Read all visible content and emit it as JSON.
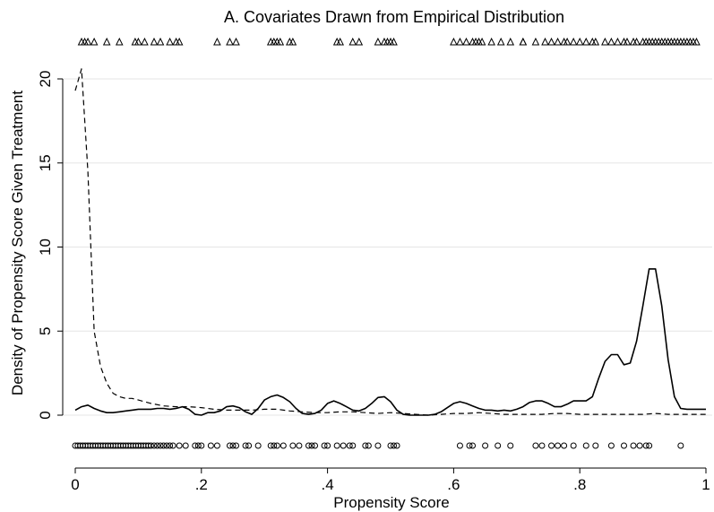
{
  "chart_data": {
    "type": "line",
    "title": "A. Covariates Drawn from Empirical Distribution",
    "xlabel": "Propensity Score",
    "ylabel": "Density of Propensity Score Given Treatment",
    "xlim": [
      0,
      1
    ],
    "ylim": [
      -2.2,
      22
    ],
    "xticks": [
      0,
      0.2,
      0.4,
      0.6,
      0.8,
      1
    ],
    "xtick_labels": [
      "0",
      ".2",
      ".4",
      ".6",
      ".8",
      "1"
    ],
    "yticks": [
      0,
      5,
      10,
      15,
      20
    ],
    "ytick_labels": [
      "0",
      "5",
      "10",
      "15",
      "20"
    ],
    "grid": true,
    "series": [
      {
        "style": "solid",
        "x": [
          0.0,
          0.01,
          0.02,
          0.03,
          0.04,
          0.05,
          0.06,
          0.07,
          0.08,
          0.09,
          0.1,
          0.11,
          0.12,
          0.13,
          0.14,
          0.15,
          0.16,
          0.17,
          0.18,
          0.19,
          0.2,
          0.21,
          0.22,
          0.23,
          0.24,
          0.25,
          0.26,
          0.27,
          0.28,
          0.29,
          0.3,
          0.31,
          0.32,
          0.33,
          0.34,
          0.35,
          0.36,
          0.37,
          0.38,
          0.39,
          0.4,
          0.41,
          0.42,
          0.43,
          0.44,
          0.45,
          0.46,
          0.47,
          0.48,
          0.49,
          0.5,
          0.51,
          0.52,
          0.53,
          0.54,
          0.55,
          0.56,
          0.57,
          0.58,
          0.59,
          0.6,
          0.61,
          0.62,
          0.63,
          0.64,
          0.65,
          0.66,
          0.67,
          0.68,
          0.69,
          0.7,
          0.71,
          0.72,
          0.73,
          0.74,
          0.75,
          0.76,
          0.77,
          0.78,
          0.79,
          0.8,
          0.81,
          0.82,
          0.83,
          0.84,
          0.85,
          0.86,
          0.87,
          0.88,
          0.89,
          0.9,
          0.91,
          0.92,
          0.93,
          0.94,
          0.95,
          0.96,
          0.97,
          0.98,
          0.99,
          1.0
        ],
        "y": [
          0.3,
          0.5,
          0.6,
          0.4,
          0.25,
          0.15,
          0.15,
          0.2,
          0.25,
          0.3,
          0.35,
          0.35,
          0.35,
          0.4,
          0.4,
          0.35,
          0.4,
          0.5,
          0.35,
          0.05,
          0.0,
          0.15,
          0.15,
          0.25,
          0.5,
          0.55,
          0.45,
          0.2,
          0.05,
          0.4,
          0.9,
          1.1,
          1.2,
          1.05,
          0.8,
          0.4,
          0.1,
          0.05,
          0.1,
          0.3,
          0.7,
          0.85,
          0.7,
          0.5,
          0.3,
          0.25,
          0.4,
          0.7,
          1.05,
          1.1,
          0.8,
          0.3,
          0.05,
          0.0,
          0.0,
          0.0,
          0.0,
          0.05,
          0.2,
          0.45,
          0.7,
          0.8,
          0.7,
          0.55,
          0.4,
          0.3,
          0.3,
          0.25,
          0.3,
          0.25,
          0.35,
          0.5,
          0.75,
          0.85,
          0.85,
          0.7,
          0.5,
          0.5,
          0.65,
          0.85,
          0.85,
          0.85,
          1.1,
          2.2,
          3.2,
          3.6,
          3.6,
          3.0,
          3.1,
          4.4,
          6.5,
          8.7,
          8.7,
          6.5,
          3.3,
          1.1,
          0.4,
          0.35,
          0.35,
          0.35,
          0.35
        ]
      },
      {
        "style": "dashed",
        "x": [
          0.0,
          0.01,
          0.02,
          0.03,
          0.04,
          0.05,
          0.06,
          0.07,
          0.08,
          0.09,
          0.1,
          0.12,
          0.14,
          0.16,
          0.18,
          0.2,
          0.22,
          0.24,
          0.26,
          0.28,
          0.3,
          0.32,
          0.34,
          0.36,
          0.38,
          0.4,
          0.42,
          0.44,
          0.46,
          0.48,
          0.5,
          0.52,
          0.54,
          0.56,
          0.58,
          0.6,
          0.62,
          0.64,
          0.66,
          0.68,
          0.7,
          0.72,
          0.74,
          0.76,
          0.78,
          0.8,
          0.82,
          0.84,
          0.86,
          0.88,
          0.9,
          0.92,
          0.94,
          0.96,
          0.98,
          1.0
        ],
        "y": [
          19.3,
          20.6,
          14.5,
          5.0,
          2.9,
          1.9,
          1.3,
          1.1,
          1.0,
          1.0,
          0.9,
          0.7,
          0.55,
          0.5,
          0.5,
          0.45,
          0.35,
          0.3,
          0.3,
          0.3,
          0.35,
          0.35,
          0.25,
          0.2,
          0.15,
          0.15,
          0.2,
          0.2,
          0.15,
          0.1,
          0.15,
          0.1,
          0.05,
          0.0,
          0.05,
          0.1,
          0.1,
          0.15,
          0.1,
          0.05,
          0.05,
          0.05,
          0.05,
          0.1,
          0.1,
          0.05,
          0.05,
          0.05,
          0.05,
          0.05,
          0.05,
          0.1,
          0.05,
          0.05,
          0.05,
          0.05
        ]
      }
    ],
    "rug_treated": [
      0.01,
      0.015,
      0.02,
      0.03,
      0.05,
      0.07,
      0.095,
      0.1,
      0.11,
      0.125,
      0.135,
      0.15,
      0.16,
      0.165,
      0.225,
      0.245,
      0.255,
      0.31,
      0.315,
      0.32,
      0.325,
      0.34,
      0.345,
      0.415,
      0.42,
      0.44,
      0.45,
      0.48,
      0.49,
      0.495,
      0.5,
      0.505,
      0.6,
      0.61,
      0.62,
      0.63,
      0.635,
      0.64,
      0.645,
      0.66,
      0.675,
      0.69,
      0.71,
      0.71,
      0.73,
      0.745,
      0.755,
      0.765,
      0.775,
      0.78,
      0.79,
      0.8,
      0.81,
      0.82,
      0.825,
      0.84,
      0.85,
      0.86,
      0.87,
      0.875,
      0.885,
      0.89,
      0.9,
      0.905,
      0.91,
      0.915,
      0.92,
      0.925,
      0.93,
      0.935,
      0.94,
      0.945,
      0.95,
      0.955,
      0.96,
      0.965,
      0.97,
      0.975,
      0.98,
      0.985
    ],
    "rug_control": [
      0.0,
      0.004,
      0.008,
      0.012,
      0.016,
      0.02,
      0.024,
      0.028,
      0.032,
      0.036,
      0.04,
      0.044,
      0.048,
      0.052,
      0.056,
      0.06,
      0.064,
      0.068,
      0.072,
      0.076,
      0.08,
      0.084,
      0.088,
      0.092,
      0.096,
      0.1,
      0.104,
      0.108,
      0.112,
      0.116,
      0.12,
      0.125,
      0.13,
      0.135,
      0.14,
      0.145,
      0.15,
      0.155,
      0.165,
      0.175,
      0.19,
      0.195,
      0.2,
      0.215,
      0.225,
      0.245,
      0.25,
      0.255,
      0.27,
      0.275,
      0.29,
      0.31,
      0.315,
      0.32,
      0.33,
      0.345,
      0.355,
      0.37,
      0.375,
      0.38,
      0.395,
      0.4,
      0.415,
      0.425,
      0.435,
      0.44,
      0.46,
      0.465,
      0.48,
      0.5,
      0.505,
      0.51,
      0.61,
      0.625,
      0.63,
      0.65,
      0.67,
      0.69,
      0.73,
      0.74,
      0.755,
      0.765,
      0.775,
      0.79,
      0.81,
      0.825,
      0.85,
      0.87,
      0.885,
      0.895,
      0.905,
      0.91,
      0.96
    ]
  }
}
